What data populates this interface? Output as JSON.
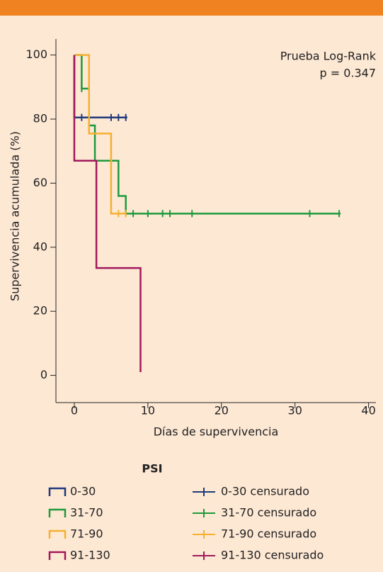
{
  "chart_data": {
    "type": "survival",
    "ylabel": "Supervivencia acumulada (%)",
    "xlabel": "Días de supervivencia",
    "annotations": [
      "Prueba Log-Rank",
      "p = 0.347"
    ],
    "xlim": [
      -2.5,
      41
    ],
    "ylim": [
      -8.5,
      105
    ],
    "xticks": [
      0,
      10,
      20,
      30,
      40
    ],
    "yticks": [
      0,
      20,
      40,
      60,
      80,
      100
    ],
    "legend_title": "PSI",
    "series": [
      {
        "name": "0-30",
        "color": "#1f3a7a",
        "x": [
          0,
          0,
          7.2
        ],
        "values": [
          100,
          80.5,
          80.5
        ]
      },
      {
        "name": "31-70",
        "color": "#1e9a3c",
        "x": [
          0,
          1,
          2,
          2.8,
          6,
          7,
          36.2
        ],
        "values": [
          100,
          89.5,
          78,
          67,
          56,
          50.5,
          50.5
        ]
      },
      {
        "name": "71-90",
        "color": "#f5b030",
        "x": [
          0,
          2,
          5,
          7
        ],
        "values": [
          100,
          75.5,
          50.5,
          50.5
        ]
      },
      {
        "name": "91-130",
        "color": "#a0195a",
        "x": [
          0,
          0,
          3,
          9,
          9
        ],
        "values": [
          100,
          67,
          33.5,
          33.5,
          1
        ]
      }
    ],
    "censored": [
      {
        "name": "0-30 censurado",
        "color": "#1f3a7a",
        "x": [
          1,
          5,
          6,
          7
        ],
        "values": [
          80.5,
          80.5,
          80.5,
          80.5
        ]
      },
      {
        "name": "31-70 censurado",
        "color": "#1e9a3c",
        "x": [
          1,
          8,
          10,
          12,
          13,
          16,
          32,
          36
        ],
        "values": [
          89.5,
          50.5,
          50.5,
          50.5,
          50.5,
          50.5,
          50.5,
          50.5
        ]
      },
      {
        "name": "71-90 censurado",
        "color": "#f5b030",
        "x": [
          6,
          7
        ],
        "values": [
          50.5,
          50.5
        ]
      },
      {
        "name": "91-130 censurado",
        "color": "#a0195a",
        "x": [],
        "values": []
      }
    ]
  }
}
